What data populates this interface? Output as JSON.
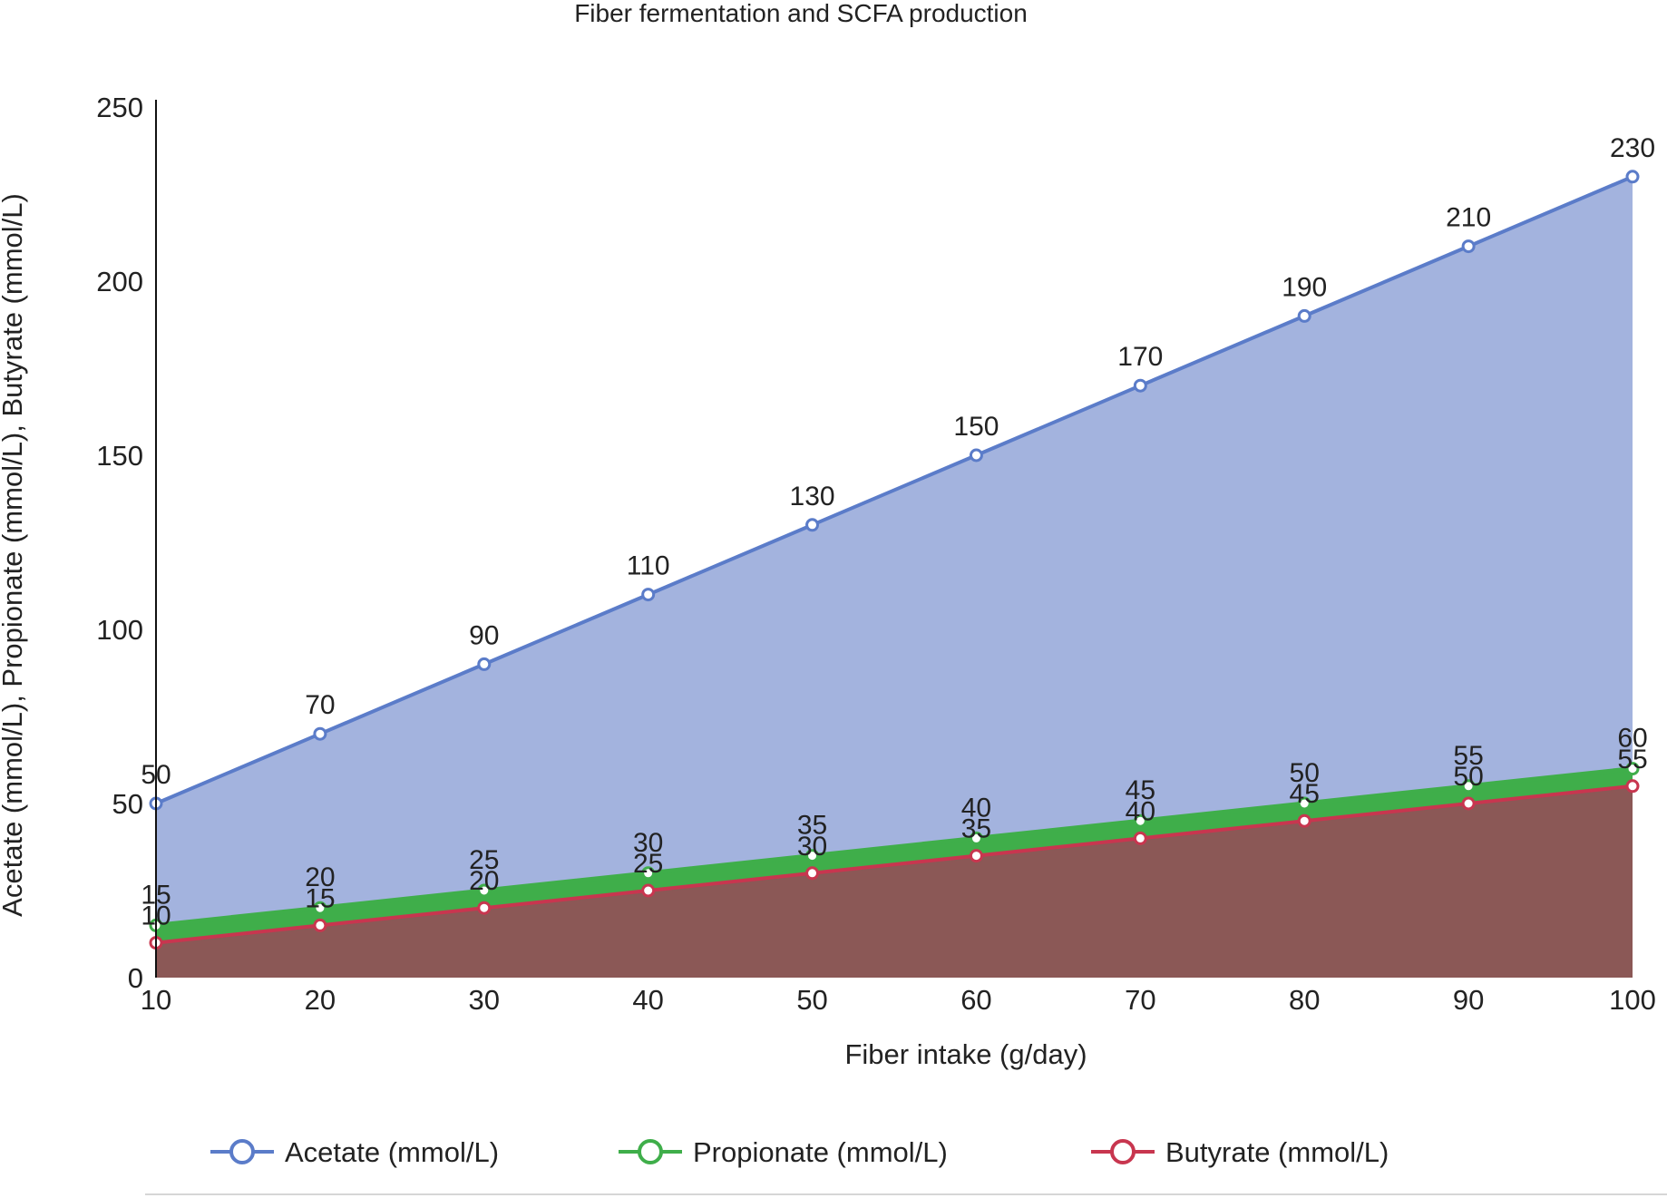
{
  "chart_data": {
    "type": "area",
    "title": "Fiber fermentation and SCFA production",
    "xlabel": "Fiber intake (g/day)",
    "ylabel": "Acetate (mmol/L), Propionate (mmol/L), Butyrate (mmol/L)",
    "x": [
      10,
      20,
      30,
      40,
      50,
      60,
      70,
      80,
      90,
      100
    ],
    "xlim": [
      10,
      100
    ],
    "ylim": [
      0,
      250
    ],
    "yticks": [
      0,
      50,
      100,
      150,
      200,
      250
    ],
    "grid": false,
    "legend_position": "bottom",
    "series": [
      {
        "name": "Acetate (mmol/L)",
        "values": [
          50,
          70,
          90,
          110,
          130,
          150,
          170,
          190,
          210,
          230
        ],
        "line_color": "#5b7cc9",
        "fill_color": "#a3b3de"
      },
      {
        "name": "Propionate (mmol/L)",
        "values": [
          15,
          20,
          25,
          30,
          35,
          40,
          45,
          50,
          55,
          60
        ],
        "line_color": "#3fae4a",
        "fill_color": "#3fae4a"
      },
      {
        "name": "Butyrate (mmol/L)",
        "values": [
          10,
          15,
          20,
          25,
          30,
          35,
          40,
          45,
          50,
          55
        ],
        "line_color": "#c8364f",
        "fill_color": "#8b5856"
      }
    ]
  }
}
